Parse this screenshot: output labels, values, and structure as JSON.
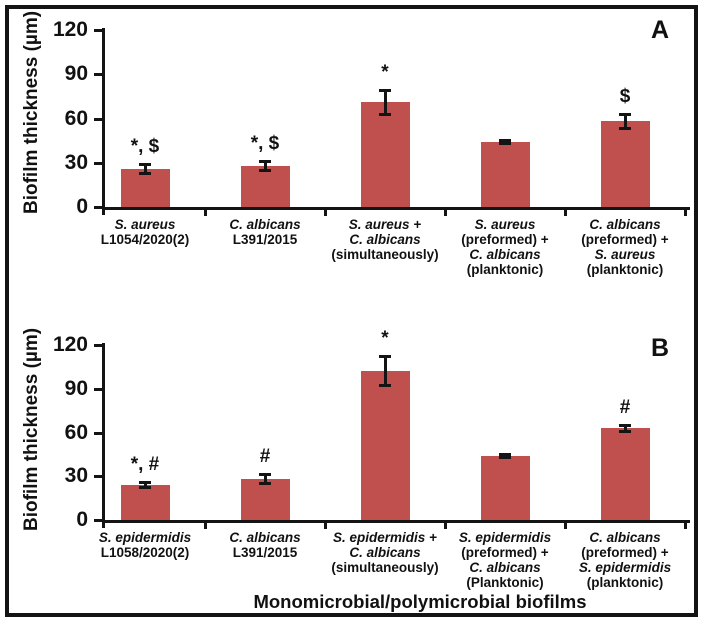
{
  "figure": {
    "background": "#ffffff",
    "border_color": "#141414"
  },
  "chart_data": [
    {
      "type": "bar",
      "panel_label": "A",
      "ylabel": "Biofilm thickness (µm)",
      "xlabel": "",
      "ylim": [
        0,
        120
      ],
      "yticks": [
        0,
        30,
        60,
        90,
        120
      ],
      "grid": false,
      "legend": "none",
      "bar_color": "#c0504d",
      "axis_color": "#141414",
      "categories": [
        {
          "lines": [
            {
              "text": "S. aureus",
              "italic": true
            },
            {
              "text": "L1054/2020(2)",
              "italic": false
            }
          ]
        },
        {
          "lines": [
            {
              "text": "C. albicans",
              "italic": true
            },
            {
              "text": "L391/2015",
              "italic": false
            }
          ]
        },
        {
          "lines": [
            {
              "text": "S. aureus +",
              "italic": true
            },
            {
              "text": "C. albicans",
              "italic": true
            },
            {
              "text": "(simultaneously)",
              "italic": false
            }
          ]
        },
        {
          "lines": [
            {
              "text": "S. aureus",
              "italic": true
            },
            {
              "text": "(preformed) +",
              "italic": false
            },
            {
              "text": "C. albicans",
              "italic": true
            },
            {
              "text": "(planktonic)",
              "italic": false
            }
          ]
        },
        {
          "lines": [
            {
              "text": "C. albicans",
              "italic": true
            },
            {
              "text": "(preformed) +",
              "italic": false
            },
            {
              "text": "S. aureus",
              "italic": true
            },
            {
              "text": "(planktonic)",
              "italic": false
            }
          ]
        }
      ],
      "values": [
        26,
        28,
        71,
        44,
        58
      ],
      "errors": [
        4,
        4,
        9,
        2,
        6
      ],
      "annotations": [
        "*, $",
        "*, $",
        "*",
        "",
        "$"
      ]
    },
    {
      "type": "bar",
      "panel_label": "B",
      "ylabel": "Biofilm thickness (µm)",
      "xlabel": "Monomicrobial/polymicrobial biofilms",
      "ylim": [
        0,
        120
      ],
      "yticks": [
        0,
        30,
        60,
        90,
        120
      ],
      "grid": false,
      "legend": "none",
      "bar_color": "#c0504d",
      "axis_color": "#141414",
      "categories": [
        {
          "lines": [
            {
              "text": "S. epidermidis",
              "italic": true
            },
            {
              "text": "L1058/2020(2)",
              "italic": false
            }
          ]
        },
        {
          "lines": [
            {
              "text": "C. albicans",
              "italic": true
            },
            {
              "text": "L391/2015",
              "italic": false
            }
          ]
        },
        {
          "lines": [
            {
              "text": "S. epidermidis +",
              "italic": true
            },
            {
              "text": "C. albicans",
              "italic": true
            },
            {
              "text": "(simultaneously)",
              "italic": false
            }
          ]
        },
        {
          "lines": [
            {
              "text": "S. epidermidis",
              "italic": true
            },
            {
              "text": "(preformed) +",
              "italic": false
            },
            {
              "text": "C. albicans",
              "italic": true
            },
            {
              "text": "(Planktonic)",
              "italic": false
            }
          ]
        },
        {
          "lines": [
            {
              "text": "C. albicans",
              "italic": true
            },
            {
              "text": "(preformed) +",
              "italic": false
            },
            {
              "text": "S. epidermidis",
              "italic": true
            },
            {
              "text": "(planktonic)",
              "italic": false
            }
          ]
        }
      ],
      "values": [
        24,
        28,
        102,
        44,
        63
      ],
      "errors": [
        3,
        4,
        11,
        2,
        3
      ],
      "annotations": [
        "*, #",
        "#",
        "*",
        "",
        "#"
      ]
    }
  ]
}
